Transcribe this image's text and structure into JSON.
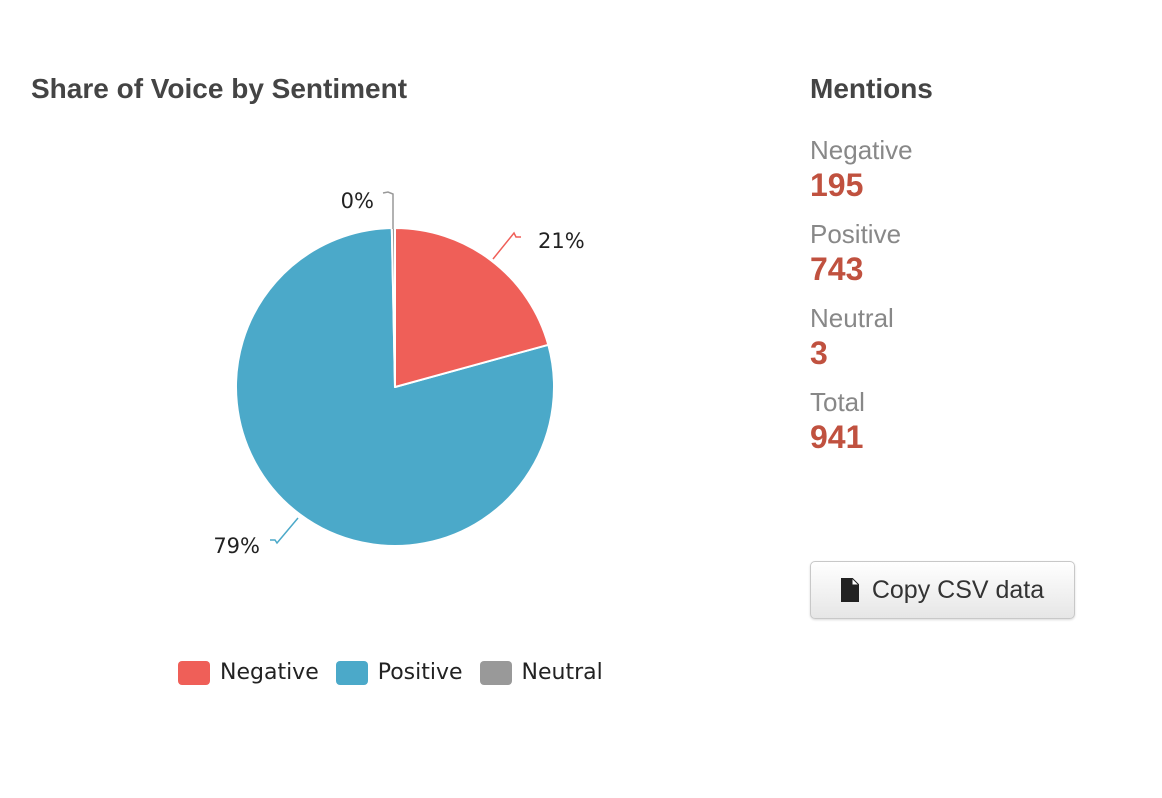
{
  "chart_data": {
    "type": "pie",
    "title": "Share of Voice by Sentiment",
    "categories": [
      "Negative",
      "Positive",
      "Neutral"
    ],
    "values": [
      195,
      743,
      3
    ],
    "percent_labels": [
      "21%",
      "79%",
      "0%"
    ],
    "colors": [
      "#ef5f58",
      "#4ba9c9",
      "#999999"
    ],
    "legend_position": "bottom"
  },
  "stats": {
    "title": "Mentions",
    "items": [
      {
        "label": "Negative",
        "value": "195"
      },
      {
        "label": "Positive",
        "value": "743"
      },
      {
        "label": "Neutral",
        "value": "3"
      },
      {
        "label": "Total",
        "value": "941"
      }
    ]
  },
  "copy_button": {
    "label": "Copy CSV data",
    "icon": "document-icon"
  },
  "colors": {
    "heading": "#444444",
    "stat_label": "#888888",
    "stat_value": "#c0513f"
  }
}
